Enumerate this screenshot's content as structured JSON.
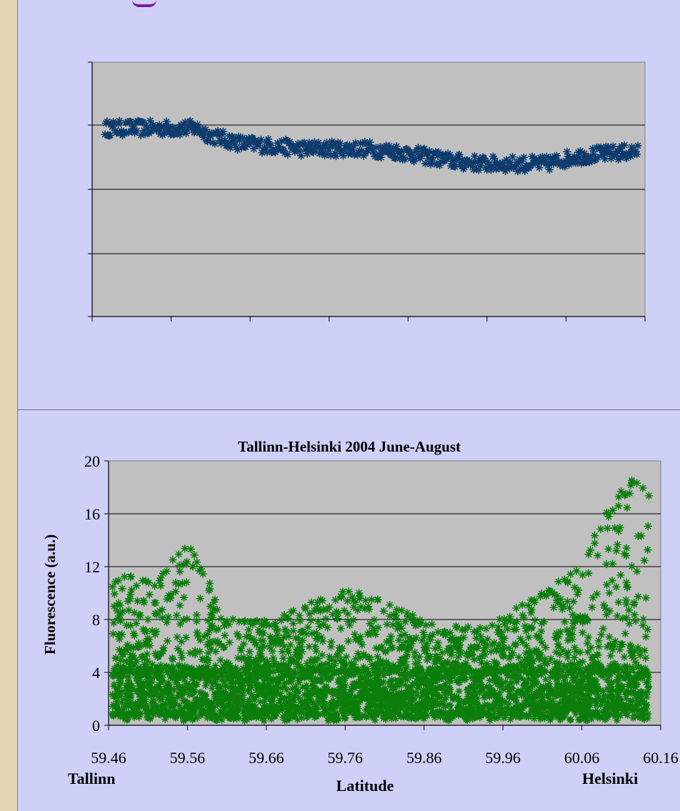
{
  "colors": {
    "background": "#cfd0f7",
    "border": "#e2d6b4",
    "plot_area": "#c0c0c0",
    "series_top": "#0d3b6e",
    "series_bottom": "#0a7d0a"
  },
  "chart_data": [
    {
      "type": "scatter",
      "title": "",
      "xlabel": "",
      "ylabel": "",
      "marker": "asterisk",
      "x_tick_count": 8,
      "y_gridlines": 4,
      "grid": true,
      "series": [
        {
          "color": "#0d3b6e",
          "x": [
            59.46,
            59.5,
            59.55,
            59.58,
            59.6,
            59.64,
            59.68,
            59.72,
            59.76,
            59.8,
            59.84,
            59.88,
            59.92,
            59.96,
            60.0,
            60.04,
            60.08,
            60.12,
            60.16
          ],
          "y": [
            0.74,
            0.74,
            0.74,
            0.74,
            0.71,
            0.68,
            0.67,
            0.66,
            0.66,
            0.66,
            0.65,
            0.63,
            0.61,
            0.6,
            0.6,
            0.6,
            0.63,
            0.64,
            0.65
          ]
        }
      ]
    },
    {
      "type": "scatter",
      "title": "Tallinn-Helsinki 2004 June-August",
      "xlabel": "Latitude",
      "ylabel": "Fluorescence (a.u.)",
      "x_ticks": [
        "59.46",
        "59.56",
        "59.66",
        "59.76",
        "59.86",
        "59.96",
        "60.06",
        "60.16"
      ],
      "y_ticks": [
        "0",
        "4",
        "8",
        "12",
        "16",
        "20"
      ],
      "xlim": [
        59.46,
        60.16
      ],
      "ylim": [
        0,
        20
      ],
      "x_end_labels": {
        "left": "Tallinn",
        "right": "Helsinki"
      },
      "marker": "asterisk",
      "grid": true,
      "series": [
        {
          "color": "#0a7d0a",
          "envelope_x": [
            59.46,
            59.48,
            59.5,
            59.52,
            59.54,
            59.56,
            59.58,
            59.6,
            59.62,
            59.66,
            59.7,
            59.74,
            59.76,
            59.78,
            59.82,
            59.86,
            59.9,
            59.94,
            59.98,
            60.02,
            60.06,
            60.08,
            60.1,
            60.12,
            60.13,
            60.14
          ],
          "envelope_y": [
            10,
            12,
            11,
            11,
            13,
            14,
            12,
            9,
            8,
            8,
            9,
            9.7,
            10.2,
            10,
            9.2,
            8,
            7.5,
            7.5,
            9,
            10.5,
            12,
            15,
            17,
            18.5,
            19,
            18
          ],
          "min_y": 0.3,
          "dense_core_y": 4
        }
      ],
      "annotations": []
    }
  ]
}
